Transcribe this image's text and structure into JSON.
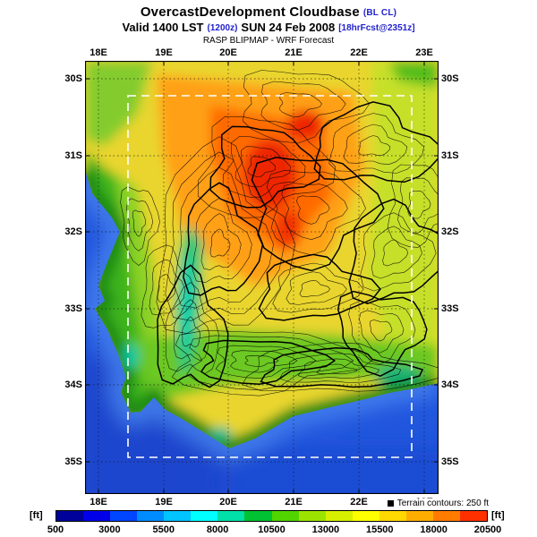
{
  "header": {
    "title": "OvercastDevelopment Cloudbase",
    "title_suffix": "(BL CL)",
    "valid_time": "Valid 1400 LST",
    "valid_zulu": "(1200z)",
    "valid_date": "SUN 24 Feb 2008",
    "forecast_info": "[18hrFcst@2351z]",
    "model_line": "RASP BLIPMAP - WRF Forecast"
  },
  "map": {
    "lon_labels": [
      "18E",
      "19E",
      "20E",
      "21E",
      "22E",
      "23E"
    ],
    "lat_labels": [
      "30S",
      "31S",
      "32S",
      "33S",
      "34S",
      "35S"
    ]
  },
  "legend": {
    "terrain_note": "Terrain contours: 250 ft",
    "unit_left": "[ft]",
    "unit_right": "[ft]"
  },
  "colorbar": {
    "tick_labels": [
      "500",
      "3000",
      "5500",
      "8000",
      "10500",
      "13000",
      "15500",
      "18000",
      "20500"
    ],
    "colors": [
      "#00009a",
      "#0000e8",
      "#0045ff",
      "#008cff",
      "#00c3ff",
      "#00ffff",
      "#00e0a8",
      "#00c232",
      "#52d400",
      "#9ce400",
      "#d6f000",
      "#ffff00",
      "#ffd900",
      "#ffae00",
      "#ff7c00",
      "#ff3000"
    ],
    "ocean_color": "#2156dd",
    "domain_box_color": "#ffffff"
  }
}
